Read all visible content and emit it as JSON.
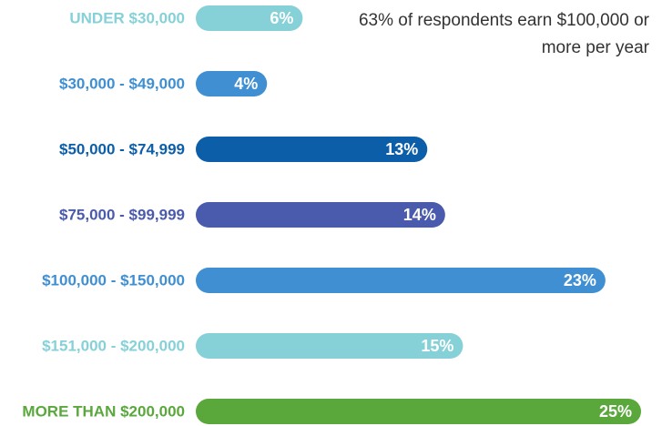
{
  "chart_data": {
    "type": "bar",
    "orientation": "horizontal",
    "annotation": "63% of respondents earn $100,000 or more per year",
    "categories": [
      "UNDER $30,000",
      "$30,000 - $49,000",
      "$50,000 - $74,999",
      "$75,000 - $99,999",
      "$100,000 - $150,000",
      "$151,000 - $200,000",
      "MORE THAN $200,000"
    ],
    "values": [
      6,
      4,
      13,
      14,
      23,
      15,
      25
    ],
    "value_labels": [
      "6%",
      "4%",
      "13%",
      "14%",
      "23%",
      "15%",
      "25%"
    ],
    "colors": [
      "#86d1d8",
      "#3f8fd2",
      "#0c5ea9",
      "#4a5aac",
      "#3f8fd2",
      "#86d1d8",
      "#5aa83c"
    ]
  }
}
